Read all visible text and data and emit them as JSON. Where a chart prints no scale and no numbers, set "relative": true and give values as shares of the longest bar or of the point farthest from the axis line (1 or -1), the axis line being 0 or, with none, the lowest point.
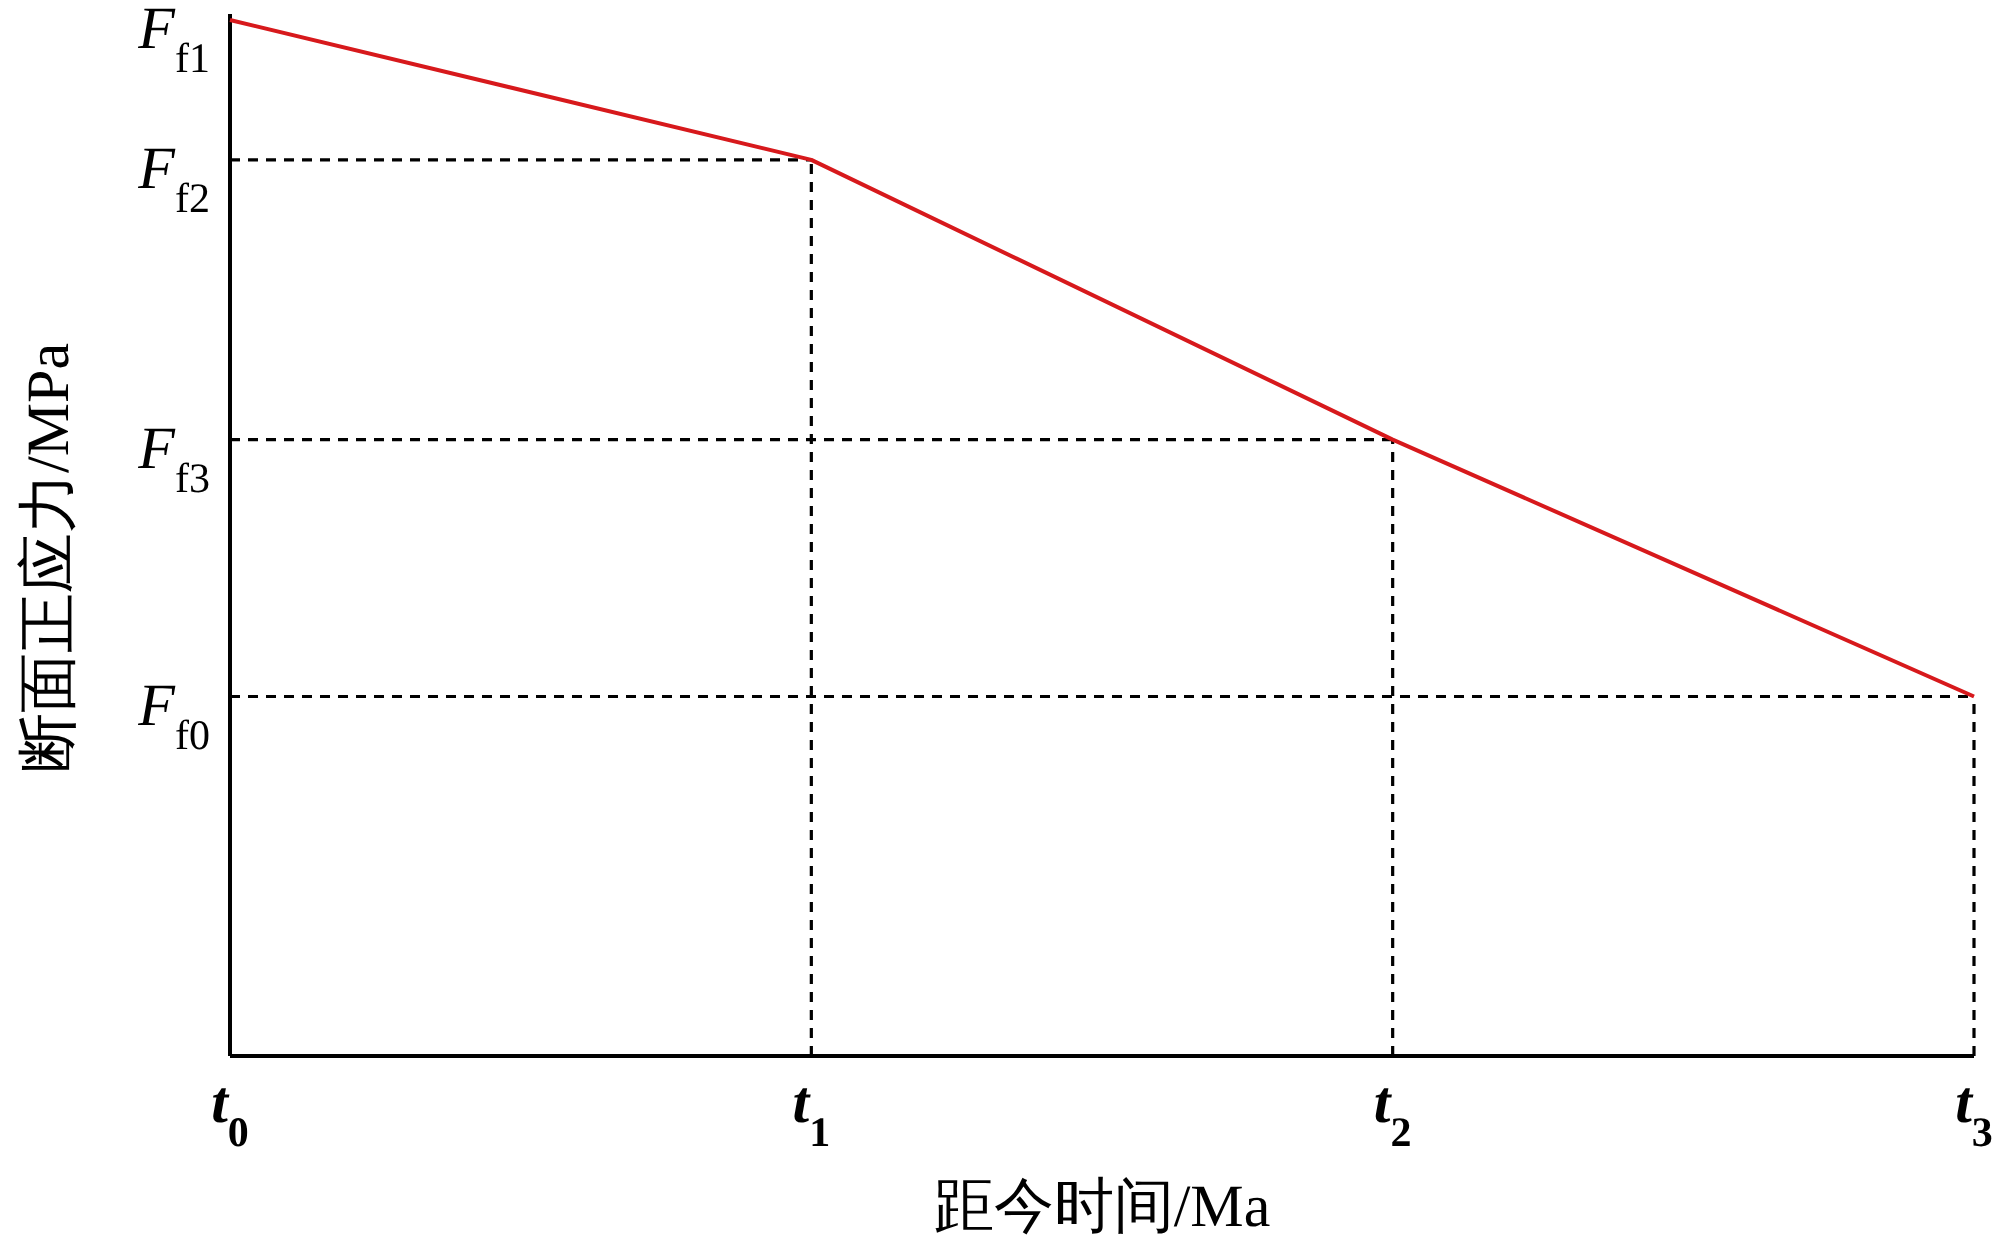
{
  "chart_data": {
    "type": "line",
    "relative": true,
    "xlabel": "距今时间/Ma",
    "ylabel": "断面正应力/MPa",
    "categories": [
      "t$_{0}$",
      "t$_{1}$",
      "t$_{2}$",
      "t$_{3}$"
    ],
    "series": [
      {
        "color": "#d7191c",
        "values": [
          1,
          0.865,
          0.595,
          0.347
        ]
      }
    ],
    "ref_lines": [
      {
        "axis": "y",
        "value": 0.865,
        "label": "F$_{f2}$",
        "color": "#000000",
        "line_style": "dashed"
      },
      {
        "axis": "y",
        "value": 0.595,
        "label": "F$_{f3}$",
        "color": "#000000",
        "line_style": "dashed"
      },
      {
        "axis": "y",
        "value": 0.347,
        "label": "F$_{f0}$",
        "color": "#000000",
        "line_style": "dashed"
      },
      {
        "axis": "x",
        "value": "t$_{1}$",
        "color": "#000000",
        "line_style": "dashed"
      },
      {
        "axis": "x",
        "value": "t$_{2}$",
        "color": "#000000",
        "line_style": "dashed"
      },
      {
        "axis": "x",
        "value": "t$_{3}$",
        "color": "#000000",
        "line_style": "dashed"
      }
    ],
    "annotations": [
      {
        "text": "F$_{f1}$",
        "x": "t$_{0}$",
        "y": 1
      }
    ],
    "grid": false,
    "legend": false,
    "marker": "none",
    "line_style": "solid"
  }
}
